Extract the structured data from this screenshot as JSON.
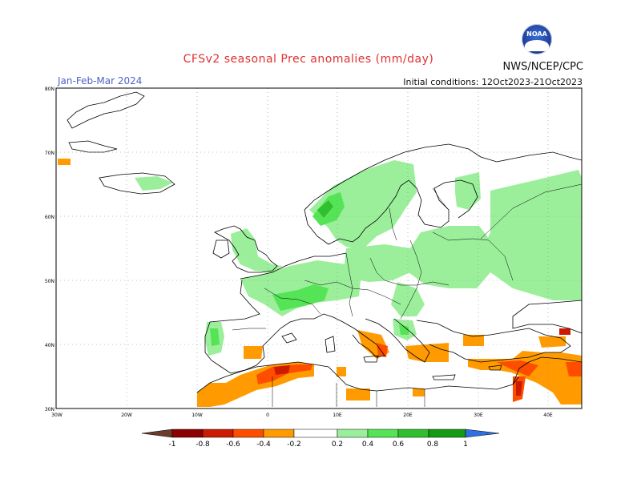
{
  "header": {
    "title": "CFSv2 seasonal Prec anomalies (mm/day)",
    "period": "Jan-Feb-Mar 2024",
    "initial_conditions": "Initial conditions: 12Oct2023-21Oct2023",
    "agency": "NWS/NCEP/CPC",
    "logo_text": "NOAA"
  },
  "map": {
    "lat_ticks": [
      "80N",
      "70N",
      "60N",
      "50N",
      "40N",
      "30N"
    ],
    "lon_ticks": [
      "30W",
      "20W",
      "10W",
      "0",
      "10E",
      "20E",
      "30E",
      "40E"
    ],
    "graticule": "dotted",
    "region": "Europe"
  },
  "colorbar": {
    "labels": [
      "-1",
      "-0.8",
      "-0.6",
      "-0.4",
      "-0.2",
      "0.2",
      "0.4",
      "0.6",
      "0.8",
      "1"
    ],
    "colors": {
      "lt_m1": "#6b3b2b",
      "m1": "#8b0000",
      "m08": "#cc1b00",
      "m06": "#ff4d00",
      "m04": "#ff9b00",
      "m02": "#ffffff",
      "p02": "#9bef9b",
      "p04": "#55e455",
      "p06": "#2fbf2f",
      "p08": "#139b13",
      "gt_1": "#2f6fe0"
    }
  }
}
